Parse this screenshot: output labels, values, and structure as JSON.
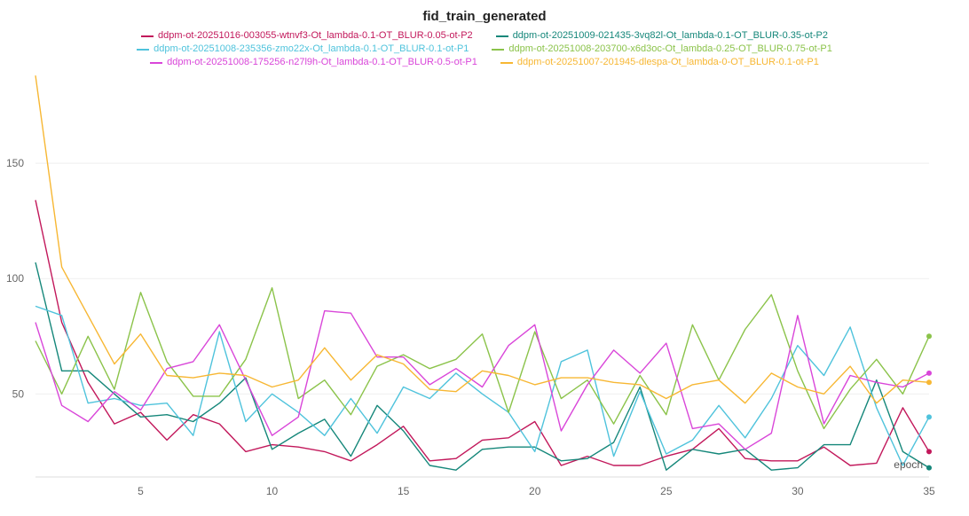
{
  "chart_data": {
    "type": "line",
    "title": "fid_train_generated",
    "xlabel": "epoch",
    "ylabel": "",
    "xlim": [
      1,
      35
    ],
    "ylim": [
      14,
      190
    ],
    "xticks": [
      5,
      10,
      15,
      20,
      25,
      30,
      35
    ],
    "yticks": [
      50,
      100,
      150
    ],
    "grid": true,
    "legend_position": "top",
    "x": [
      1,
      2,
      3,
      4,
      5,
      6,
      7,
      8,
      9,
      10,
      11,
      12,
      13,
      14,
      15,
      16,
      17,
      18,
      19,
      20,
      21,
      22,
      23,
      24,
      25,
      26,
      27,
      28,
      29,
      30,
      31,
      32,
      33,
      34,
      35
    ],
    "series": [
      {
        "name": "ddpm-ot-20251016-003055-wtnvf3-Ot_lambda-0.1-OT_BLUR-0.05-ot-P2",
        "color": "#c2185b",
        "values": [
          134,
          81,
          55,
          37,
          42,
          30,
          41,
          37,
          25,
          28,
          27,
          25,
          21,
          28,
          36,
          21,
          22,
          30,
          31,
          38,
          19,
          23,
          19,
          19,
          23,
          26,
          35,
          22,
          21,
          21,
          27,
          19,
          20,
          44,
          25
        ]
      },
      {
        "name": "ddpm-ot-20251009-021435-3vq82l-Ot_lambda-0.1-OT_BLUR-0.35-ot-P2",
        "color": "#15877a",
        "values": [
          107,
          60,
          60,
          50,
          40,
          41,
          38,
          46,
          57,
          26,
          33,
          39,
          23,
          45,
          34,
          19,
          17,
          26,
          27,
          27,
          21,
          22,
          29,
          53,
          17,
          26,
          24,
          26,
          17,
          18,
          28,
          28,
          56,
          25,
          18
        ]
      },
      {
        "name": "ddpm-ot-20251008-235356-zmo22x-Ot_lambda-0.1-OT_BLUR-0.1-ot-P1",
        "color": "#4fc3dc",
        "values": [
          88,
          84,
          46,
          48,
          45,
          46,
          32,
          77,
          38,
          50,
          42,
          32,
          48,
          33,
          53,
          48,
          59,
          50,
          42,
          25,
          64,
          69,
          23,
          51,
          24,
          30,
          45,
          31,
          48,
          71,
          58,
          79,
          44,
          19,
          40
        ]
      },
      {
        "name": "ddpm-ot-20251008-203700-x6d3oc-Ot_lambda-0.25-OT_BLUR-0.75-ot-P1",
        "color": "#8bc34a",
        "values": [
          73,
          50,
          75,
          52,
          94,
          64,
          49,
          49,
          65,
          96,
          48,
          56,
          41,
          62,
          67,
          61,
          65,
          76,
          42,
          77,
          48,
          56,
          37,
          58,
          41,
          80,
          56,
          78,
          93,
          60,
          35,
          52,
          65,
          50,
          75
        ]
      },
      {
        "name": "ddpm-ot-20251008-175256-n27l9h-Ot_lambda-0.1-OT_BLUR-0.5-ot-P1",
        "color": "#d946d9",
        "values": [
          81,
          45,
          38,
          51,
          43,
          61,
          64,
          80,
          56,
          32,
          40,
          86,
          85,
          66,
          66,
          54,
          61,
          53,
          71,
          80,
          34,
          54,
          69,
          59,
          72,
          35,
          37,
          26,
          33,
          84,
          37,
          58,
          55,
          53,
          59
        ]
      },
      {
        "name": "ddpm-ot-20251007-201945-dlespa-Ot_lambda-0-OT_BLUR-0.1-ot-P1",
        "color": "#f7b733",
        "values": [
          188,
          105,
          84,
          63,
          76,
          58,
          57,
          59,
          58,
          53,
          56,
          70,
          56,
          67,
          63,
          52,
          51,
          60,
          58,
          54,
          57,
          57,
          55,
          54,
          48,
          54,
          56,
          46,
          59,
          53,
          50,
          62,
          46,
          56,
          55
        ]
      }
    ]
  }
}
